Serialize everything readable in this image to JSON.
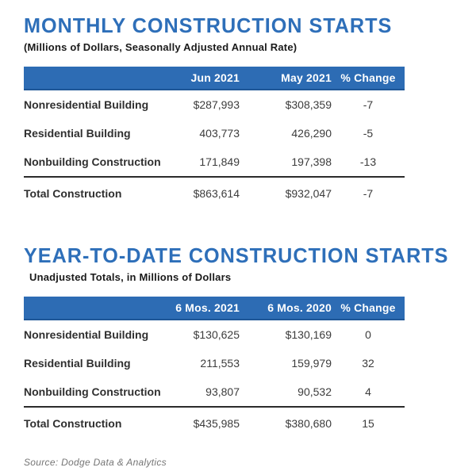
{
  "colors": {
    "accent_blue": "#2e6fb9",
    "header_bar_blue": "#2d6cb4",
    "header_bar_border": "#1e5697",
    "total_rule": "#2b2b2b",
    "body_text": "#3c3c3c",
    "source_gray": "#757575"
  },
  "chart_data": [
    {
      "type": "table",
      "title": "MONTHLY CONSTRUCTION STARTS",
      "subtitle": "(Millions of Dollars, Seasonally Adjusted Annual Rate)",
      "columns": [
        "",
        "Jun 2021",
        "May 2021",
        "% Change"
      ],
      "rows": [
        [
          "Nonresidential Building",
          "$287,993",
          "$308,359",
          "-7"
        ],
        [
          "Residential Building",
          "403,773",
          "426,290",
          "-5"
        ],
        [
          "Nonbuilding Construction",
          "171,849",
          "197,398",
          "-13"
        ]
      ],
      "total_row": [
        "Total Construction",
        "$863,614",
        "$932,047",
        "-7"
      ]
    },
    {
      "type": "table",
      "title": "YEAR-TO-DATE CONSTRUCTION STARTS",
      "subtitle": "Unadjusted Totals, in Millions of Dollars",
      "columns": [
        "",
        "6 Mos. 2021",
        "6 Mos. 2020",
        "% Change"
      ],
      "rows": [
        [
          "Nonresidential Building",
          "$130,625",
          "$130,169",
          "0"
        ],
        [
          "Residential Building",
          "211,553",
          "159,979",
          "32"
        ],
        [
          "Nonbuilding Construction",
          "93,807",
          "90,532",
          "4"
        ]
      ],
      "total_row": [
        "Total Construction",
        "$435,985",
        "$380,680",
        "15"
      ]
    }
  ],
  "source_note": "Source: Dodge Data & Analytics"
}
